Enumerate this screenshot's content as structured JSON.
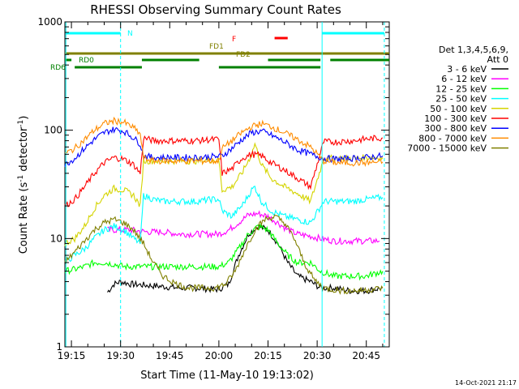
{
  "chart_data": {
    "type": "line",
    "title": "RHESSI Observing Summary Count Rates",
    "xlabel": "Start Time (11-May-10 19:13:02)",
    "ylabel_main": "Count Rate (s",
    "ylabel_sup1": "-1",
    "ylabel_mid": " detector",
    "ylabel_sup2": "-1",
    "ylabel_end": ")",
    "footer_date": "14-Oct-2021 21:17",
    "yscale": "log",
    "ylim": [
      1,
      1000
    ],
    "xlim_minutes": [
      0,
      99
    ],
    "x_ticks": [
      {
        "label": "19:15",
        "min": 2
      },
      {
        "label": "19:30",
        "min": 17
      },
      {
        "label": "19:45",
        "min": 32
      },
      {
        "label": "20:00",
        "min": 47
      },
      {
        "label": "20:15",
        "min": 62
      },
      {
        "label": "20:30",
        "min": 77
      },
      {
        "label": "20:45",
        "min": 92
      }
    ],
    "y_ticks": [
      {
        "label": "1",
        "value": 1
      },
      {
        "label": "10",
        "value": 10
      },
      {
        "label": "100",
        "value": 100
      },
      {
        "label": "1000",
        "value": 1000
      }
    ],
    "legend": {
      "header1": "Det 1,3,4,5,6,9,",
      "header2": "Att 0",
      "entries": [
        {
          "label": "3 - 6 keV",
          "color": "#000000"
        },
        {
          "label": "6 - 12 keV",
          "color": "#ff00ff"
        },
        {
          "label": "12 - 25 keV",
          "color": "#00ff00"
        },
        {
          "label": "25 - 50 keV",
          "color": "#00ffff"
        },
        {
          "label": "50 - 100 keV",
          "color": "#d4d400"
        },
        {
          "label": "100 - 300 keV",
          "color": "#ff0000"
        },
        {
          "label": "300 - 800 keV",
          "color": "#0000ff"
        },
        {
          "label": "800 - 7000 keV",
          "color": "#ff8c00"
        },
        {
          "label": "7000 - 15000 keV",
          "color": "#808000"
        }
      ]
    },
    "flags": [
      {
        "label": "N",
        "color": "#00ffff",
        "segments": [
          [
            0.3,
            17
          ],
          [
            78.5,
            97.5
          ]
        ]
      },
      {
        "label": "F",
        "color": "#ff0000",
        "segments": [
          [
            64,
            68
          ]
        ]
      },
      {
        "label": "FD1",
        "color": "#808000",
        "segments": [
          [
            0,
            99
          ]
        ]
      },
      {
        "label": "FD2",
        "color": "#808000",
        "segments": []
      },
      {
        "label": "RD0",
        "color": "#008000",
        "segments": [
          [
            0,
            2
          ],
          [
            23.5,
            41
          ],
          [
            62,
            78
          ],
          [
            81,
            99
          ]
        ]
      },
      {
        "label": "RD6",
        "color": "#008000",
        "segments": [
          [
            3,
            23.5
          ],
          [
            47,
            69
          ],
          [
            62,
            78
          ]
        ]
      }
    ],
    "gaps_minutes": [
      [
        17,
        17
      ],
      [
        78.5,
        78.5
      ],
      [
        97.5,
        97.5
      ]
    ],
    "series": [
      {
        "name": "3 - 6 keV",
        "color": "#000000",
        "points": [
          [
            13,
            3.2
          ],
          [
            15,
            3.8
          ],
          [
            17,
            4.0
          ],
          [
            20,
            3.8
          ],
          [
            25,
            3.7
          ],
          [
            30,
            3.6
          ],
          [
            35,
            3.5
          ],
          [
            40,
            3.5
          ],
          [
            45,
            3.4
          ],
          [
            47,
            3.4
          ],
          [
            50,
            3.8
          ],
          [
            53,
            7
          ],
          [
            56,
            11
          ],
          [
            59,
            13
          ],
          [
            62,
            12
          ],
          [
            65,
            9
          ],
          [
            68,
            6
          ],
          [
            71,
            4.5
          ],
          [
            75,
            4
          ],
          [
            78,
            3.5
          ],
          [
            82,
            3.5
          ],
          [
            87,
            3.3
          ],
          [
            92,
            3.3
          ],
          [
            97,
            3.5
          ]
        ]
      },
      {
        "name": "6 - 12 keV",
        "color": "#ff00ff",
        "points": [
          [
            13,
            12
          ],
          [
            16,
            12
          ],
          [
            20,
            12
          ],
          [
            25,
            11.5
          ],
          [
            30,
            11.5
          ],
          [
            35,
            11
          ],
          [
            40,
            11
          ],
          [
            45,
            11
          ],
          [
            47,
            11
          ],
          [
            50,
            12
          ],
          [
            53,
            14
          ],
          [
            56,
            16.5
          ],
          [
            59,
            17
          ],
          [
            62,
            16
          ],
          [
            65,
            14
          ],
          [
            68,
            12
          ],
          [
            71,
            11
          ],
          [
            75,
            10.5
          ],
          [
            78,
            10
          ],
          [
            82,
            9.5
          ],
          [
            87,
            9.5
          ],
          [
            92,
            9.5
          ],
          [
            96,
            9.5
          ]
        ]
      },
      {
        "name": "12 - 25 keV",
        "color": "#00ff00",
        "points": [
          [
            0,
            5
          ],
          [
            3,
            5.2
          ],
          [
            6,
            5.5
          ],
          [
            9,
            6
          ],
          [
            12,
            6
          ],
          [
            15,
            5.8
          ],
          [
            18,
            5.5
          ],
          [
            21,
            5.5
          ],
          [
            24,
            5.5
          ],
          [
            27,
            5.5
          ],
          [
            30,
            5.5
          ],
          [
            35,
            5.5
          ],
          [
            40,
            5.5
          ],
          [
            45,
            5.5
          ],
          [
            47,
            5.5
          ],
          [
            50,
            6
          ],
          [
            53,
            8
          ],
          [
            56,
            11
          ],
          [
            59,
            13
          ],
          [
            62,
            12
          ],
          [
            65,
            9
          ],
          [
            68,
            7
          ],
          [
            71,
            6
          ],
          [
            75,
            6
          ],
          [
            78,
            5
          ],
          [
            82,
            4.5
          ],
          [
            87,
            4.5
          ],
          [
            92,
            4.5
          ],
          [
            97,
            5
          ]
        ]
      },
      {
        "name": "25 - 50 keV",
        "color": "#00ffff",
        "points": [
          [
            0,
            6
          ],
          [
            3,
            7
          ],
          [
            6,
            8
          ],
          [
            9,
            10
          ],
          [
            12,
            12
          ],
          [
            15,
            13
          ],
          [
            18,
            12
          ],
          [
            21,
            10
          ],
          [
            23,
            9
          ],
          [
            24,
            25
          ],
          [
            27,
            23
          ],
          [
            30,
            22
          ],
          [
            35,
            22
          ],
          [
            40,
            22
          ],
          [
            45,
            23
          ],
          [
            47,
            23
          ],
          [
            48,
            18
          ],
          [
            51,
            16
          ],
          [
            54,
            20
          ],
          [
            57,
            28
          ],
          [
            58,
            30
          ],
          [
            60,
            22
          ],
          [
            63,
            18
          ],
          [
            67,
            16
          ],
          [
            71,
            15
          ],
          [
            75,
            14
          ],
          [
            79,
            22
          ],
          [
            83,
            22
          ],
          [
            88,
            22
          ],
          [
            92,
            23
          ],
          [
            97,
            24
          ]
        ]
      },
      {
        "name": "50 - 100 keV",
        "color": "#d4d400",
        "points": [
          [
            0,
            9
          ],
          [
            3,
            10
          ],
          [
            6,
            13
          ],
          [
            9,
            19
          ],
          [
            12,
            25
          ],
          [
            15,
            29
          ],
          [
            18,
            28
          ],
          [
            21,
            25
          ],
          [
            23,
            20
          ],
          [
            24,
            52
          ],
          [
            27,
            52
          ],
          [
            30,
            52
          ],
          [
            35,
            52
          ],
          [
            40,
            52
          ],
          [
            45,
            53
          ],
          [
            47,
            53
          ],
          [
            48,
            28
          ],
          [
            51,
            30
          ],
          [
            54,
            40
          ],
          [
            57,
            60
          ],
          [
            58,
            75
          ],
          [
            60,
            48
          ],
          [
            63,
            36
          ],
          [
            67,
            30
          ],
          [
            71,
            26
          ],
          [
            75,
            22
          ],
          [
            79,
            55
          ],
          [
            83,
            55
          ],
          [
            88,
            55
          ],
          [
            92,
            56
          ],
          [
            97,
            56
          ]
        ]
      },
      {
        "name": "100 - 300 keV",
        "color": "#ff0000",
        "points": [
          [
            0,
            20
          ],
          [
            3,
            23
          ],
          [
            6,
            30
          ],
          [
            9,
            40
          ],
          [
            12,
            50
          ],
          [
            15,
            56
          ],
          [
            18,
            54
          ],
          [
            21,
            48
          ],
          [
            23,
            40
          ],
          [
            24,
            85
          ],
          [
            27,
            80
          ],
          [
            30,
            80
          ],
          [
            35,
            80
          ],
          [
            40,
            80
          ],
          [
            45,
            82
          ],
          [
            47,
            82
          ],
          [
            48,
            40
          ],
          [
            51,
            44
          ],
          [
            54,
            55
          ],
          [
            57,
            60
          ],
          [
            60,
            58
          ],
          [
            63,
            50
          ],
          [
            67,
            43
          ],
          [
            71,
            36
          ],
          [
            75,
            30
          ],
          [
            79,
            78
          ],
          [
            83,
            78
          ],
          [
            88,
            80
          ],
          [
            92,
            83
          ],
          [
            97,
            85
          ]
        ]
      },
      {
        "name": "300 - 800 keV",
        "color": "#0000ff",
        "points": [
          [
            0,
            48
          ],
          [
            3,
            55
          ],
          [
            6,
            68
          ],
          [
            9,
            82
          ],
          [
            12,
            95
          ],
          [
            15,
            102
          ],
          [
            18,
            98
          ],
          [
            21,
            85
          ],
          [
            23,
            75
          ],
          [
            24,
            58
          ],
          [
            27,
            56
          ],
          [
            30,
            56
          ],
          [
            35,
            56
          ],
          [
            40,
            56
          ],
          [
            45,
            57
          ],
          [
            47,
            57
          ],
          [
            48,
            58
          ],
          [
            51,
            68
          ],
          [
            54,
            82
          ],
          [
            57,
            95
          ],
          [
            60,
            98
          ],
          [
            63,
            90
          ],
          [
            67,
            78
          ],
          [
            71,
            66
          ],
          [
            75,
            60
          ],
          [
            79,
            55
          ],
          [
            83,
            54
          ],
          [
            88,
            55
          ],
          [
            92,
            56
          ],
          [
            97,
            58
          ]
        ]
      },
      {
        "name": "800 - 7000 keV",
        "color": "#ff8c00",
        "points": [
          [
            0,
            60
          ],
          [
            3,
            68
          ],
          [
            6,
            82
          ],
          [
            9,
            100
          ],
          [
            12,
            115
          ],
          [
            15,
            122
          ],
          [
            18,
            118
          ],
          [
            21,
            105
          ],
          [
            23,
            92
          ],
          [
            24,
            55
          ],
          [
            27,
            52
          ],
          [
            30,
            52
          ],
          [
            35,
            52
          ],
          [
            40,
            52
          ],
          [
            45,
            52
          ],
          [
            47,
            52
          ],
          [
            48,
            68
          ],
          [
            51,
            80
          ],
          [
            54,
            95
          ],
          [
            57,
            108
          ],
          [
            60,
            115
          ],
          [
            63,
            108
          ],
          [
            67,
            95
          ],
          [
            71,
            82
          ],
          [
            75,
            70
          ],
          [
            79,
            52
          ],
          [
            83,
            50
          ],
          [
            88,
            50
          ],
          [
            92,
            50
          ],
          [
            97,
            51
          ]
        ]
      },
      {
        "name": "7000 - 15000 keV",
        "color": "#808000",
        "points": [
          [
            0,
            6
          ],
          [
            3,
            7.5
          ],
          [
            6,
            9.5
          ],
          [
            9,
            12
          ],
          [
            12,
            14
          ],
          [
            15,
            15
          ],
          [
            18,
            14
          ],
          [
            21,
            12
          ],
          [
            24,
            9
          ],
          [
            27,
            6
          ],
          [
            30,
            4.5
          ],
          [
            34,
            3.8
          ],
          [
            38,
            3.5
          ],
          [
            42,
            3.5
          ],
          [
            46,
            3.5
          ],
          [
            49,
            3.8
          ],
          [
            52,
            5
          ],
          [
            55,
            8
          ],
          [
            58,
            12
          ],
          [
            61,
            15
          ],
          [
            64,
            16
          ],
          [
            67,
            14
          ],
          [
            70,
            10
          ],
          [
            73,
            6
          ],
          [
            76,
            4.2
          ],
          [
            79,
            3.5
          ],
          [
            84,
            3.3
          ],
          [
            89,
            3.3
          ],
          [
            94,
            3.4
          ],
          [
            97,
            3.5
          ]
        ]
      }
    ]
  }
}
